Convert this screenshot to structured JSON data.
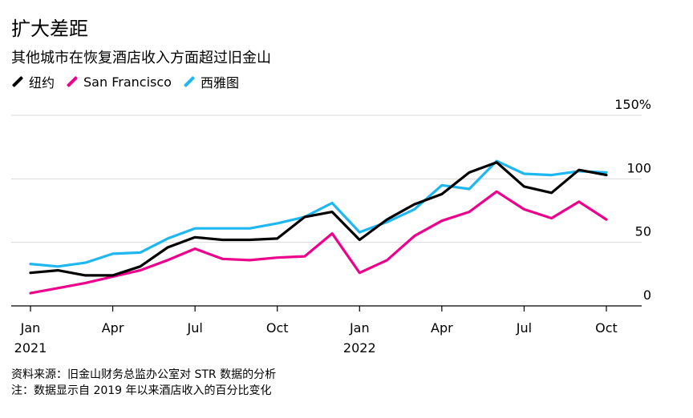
{
  "title": "扩大差距",
  "subtitle": "其他城市在恢复酒店收入方面超过旧金山",
  "notes": {
    "source": "资料来源：旧金山财务总监办公室对 STR 数据的分析",
    "note": "注：数据显示自 2019 年以来酒店收入的百分比变化"
  },
  "colors": {
    "ny": "#000000",
    "sf": "#ec008c",
    "seattle": "#1fb7f2",
    "grid": "#d9d9d9"
  },
  "chart_data": {
    "type": "line",
    "title": "扩大差距",
    "subtitle": "其他城市在恢复酒店收入方面超过旧金山",
    "ylim": [
      0,
      150
    ],
    "yticks": [
      0,
      50,
      100,
      150
    ],
    "ytick_labels": [
      "0",
      "50",
      "100",
      "150%"
    ],
    "grid": true,
    "legend_position": "top-left",
    "x": [
      "2021-01",
      "2021-02",
      "2021-03",
      "2021-04",
      "2021-05",
      "2021-06",
      "2021-07",
      "2021-08",
      "2021-09",
      "2021-10",
      "2021-11",
      "2021-12",
      "2022-01",
      "2022-02",
      "2022-03",
      "2022-04",
      "2022-05",
      "2022-06",
      "2022-07",
      "2022-08",
      "2022-09",
      "2022-10"
    ],
    "xtick_labels": [
      {
        "x": "2021-01",
        "month": "Jan",
        "year": "2021"
      },
      {
        "x": "2021-04",
        "month": "Apr",
        "year": ""
      },
      {
        "x": "2021-07",
        "month": "Jul",
        "year": ""
      },
      {
        "x": "2021-10",
        "month": "Oct",
        "year": ""
      },
      {
        "x": "2022-01",
        "month": "Jan",
        "year": "2022"
      },
      {
        "x": "2022-04",
        "month": "Apr",
        "year": ""
      },
      {
        "x": "2022-07",
        "month": "Jul",
        "year": ""
      },
      {
        "x": "2022-10",
        "month": "Oct",
        "year": ""
      }
    ],
    "series": [
      {
        "name": "纽约",
        "color_key": "ny",
        "values": [
          26,
          28,
          24,
          24,
          31,
          46,
          54,
          52,
          52,
          53,
          70,
          74,
          52,
          68,
          80,
          88,
          105,
          113,
          94,
          89,
          107,
          103
        ]
      },
      {
        "name": "San Francisco",
        "color_key": "sf",
        "values": [
          10,
          14,
          18,
          23,
          28,
          36,
          45,
          37,
          36,
          38,
          39,
          57,
          26,
          36,
          55,
          67,
          74,
          90,
          76,
          69,
          82,
          68
        ]
      },
      {
        "name": "西雅图",
        "color_key": "seattle",
        "values": [
          33,
          31,
          34,
          41,
          42,
          53,
          61,
          61,
          61,
          65,
          70,
          81,
          58,
          66,
          76,
          95,
          92,
          114,
          104,
          103,
          106,
          105
        ]
      }
    ]
  }
}
